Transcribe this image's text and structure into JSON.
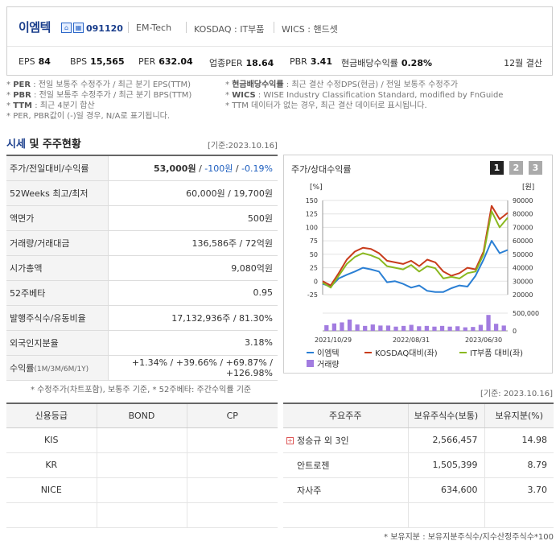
{
  "header": {
    "company_name": "이엠텍",
    "code": "091120",
    "english_name": "EM-Tech",
    "market": "KOSDAQ : IT부품",
    "wics": "WICS : 핸드셋",
    "badges": [
      "KOSDAQ",
      "WICS"
    ],
    "metrics": [
      {
        "label": "EPS",
        "value": "84"
      },
      {
        "label": "BPS",
        "value": "15,565"
      },
      {
        "label": "PER",
        "value": "632.04"
      },
      {
        "label": "업종PER",
        "value": "18.64"
      },
      {
        "label": "PBR",
        "value": "3.41"
      },
      {
        "label": "현금배당수익률",
        "value": "0.28%"
      }
    ],
    "settlement": "12월 결산"
  },
  "notes_left": [
    {
      "key": "PER",
      "text": ": 전일 보통주 수정주가 / 최근 분기 EPS(TTM)"
    },
    {
      "key": "PBR",
      "text": ": 전일 보통주 수정주가 / 최근 분기 BPS(TTM)"
    },
    {
      "key": "TTM",
      "text": ": 최근 4분기 합산"
    },
    {
      "key": "",
      "text": "PER, PBR값이 (-)일 경우, N/A로 표기됩니다."
    }
  ],
  "notes_right": [
    {
      "key": "현금배당수익률",
      "text": ": 최근 결산 수정DPS(현금) / 전일 보통주 수정주가"
    },
    {
      "key": "WICS",
      "text": ": WISE Industry Classification Standard, modified by FnGuide"
    },
    {
      "key": "",
      "text": "TTM 데이터가 없는 경우, 최근 결산 데이터로 표시됩니다."
    }
  ],
  "market_section": {
    "title_highlight": "시세",
    "title_rest": " 및 주주현황",
    "ref_date": "[기준:2023.10.16]",
    "rows": [
      {
        "label": "주가/전일대비/수익률",
        "price": "53,000원",
        "change": "-100원",
        "rate": "-0.19%"
      },
      {
        "label": "52Weeks 최고/최저",
        "value": "60,000원 / 19,700원"
      },
      {
        "label": "액면가",
        "value": "500원"
      },
      {
        "label": "거래량/거래대금",
        "value": "136,586주 / 72억원"
      },
      {
        "label": "시가총액",
        "value": "9,080억원"
      },
      {
        "label": "52주베타",
        "value": "0.95"
      },
      {
        "label": "발행주식수/유동비율",
        "value": "17,132,936주 / 81.30%"
      },
      {
        "label": "외국인지분율",
        "value": "3.18%"
      },
      {
        "label": "수익률",
        "label_sub": "(1M/3M/6M/1Y)",
        "returns": [
          "+1.34%",
          "+39.66%",
          "+69.87%",
          "+126.98%"
        ]
      }
    ],
    "footnote": "* 수정주가(차트포함), 보통주 기준, * 52주베타: 주간수익률 기준"
  },
  "chart_panel": {
    "title": "주가/상대수익률",
    "pages": [
      "1",
      "2",
      "3"
    ],
    "active_page": "1",
    "legend": [
      {
        "name": "이엠텍",
        "color": "#2a7fd4"
      },
      {
        "name": "KOSDAQ대비(좌)",
        "color": "#c83c1c"
      },
      {
        "name": "IT부품 대비(좌)",
        "color": "#8ab820"
      },
      {
        "name": "거래량",
        "color": "#a27ce0"
      }
    ]
  },
  "chart_data": {
    "type": "line",
    "x_ticks": [
      "2021/10/29",
      "2022/08/31",
      "2023/06/30"
    ],
    "left_unit": "[%]",
    "right_unit": "[원]",
    "left_ticks": [
      "150",
      "125",
      "100",
      "75",
      "50",
      "25",
      "0",
      "-25"
    ],
    "right_ticks": [
      "90000",
      "80000",
      "70000",
      "60000",
      "50000",
      "40000",
      "30000",
      "20000"
    ],
    "volume_ticks": [
      "500,000",
      "0"
    ],
    "ylim_left": [
      -25,
      150
    ],
    "ylim_right": [
      20000,
      90000
    ],
    "volume_max": 500000,
    "series": [
      {
        "name": "이엠텍",
        "color": "#2a7fd4",
        "values": [
          -5,
          -10,
          5,
          12,
          18,
          25,
          22,
          18,
          -2,
          0,
          -5,
          -12,
          -8,
          -18,
          -20,
          -20,
          -13,
          -8,
          -10,
          10,
          40,
          75,
          52,
          58
        ]
      },
      {
        "name": "KOSDAQ대비(좌)",
        "color": "#c83c1c",
        "values": [
          0,
          -8,
          15,
          40,
          55,
          62,
          60,
          52,
          38,
          35,
          32,
          38,
          28,
          40,
          35,
          18,
          10,
          15,
          25,
          22,
          55,
          140,
          115,
          127
        ]
      },
      {
        "name": "IT부품 대비(좌)",
        "color": "#8ab820",
        "values": [
          -3,
          -12,
          10,
          32,
          45,
          52,
          48,
          42,
          28,
          25,
          22,
          30,
          18,
          28,
          24,
          5,
          8,
          5,
          15,
          18,
          50,
          130,
          100,
          118
        ]
      }
    ],
    "volume": [
      160000,
      210000,
      240000,
      320000,
      180000,
      140000,
      180000,
      150000,
      150000,
      120000,
      140000,
      170000,
      130000,
      140000,
      120000,
      140000,
      120000,
      130000,
      100000,
      110000,
      170000,
      450000,
      200000,
      150000
    ]
  },
  "credit": {
    "headers": [
      "신용등급",
      "BOND",
      "CP"
    ],
    "rows": [
      [
        "KIS",
        "",
        ""
      ],
      [
        "KR",
        "",
        ""
      ],
      [
        "NICE",
        "",
        ""
      ]
    ]
  },
  "shareholders": {
    "ref_date": "[기준: 2023.10.16]",
    "headers": [
      "주요주주",
      "보유주식수(보통)",
      "보유지분(%)"
    ],
    "rows": [
      {
        "name": "정승규 외 3인",
        "shares": "2,566,457",
        "pct": "14.98",
        "expandable": true
      },
      {
        "name": "안트로젠",
        "shares": "1,505,399",
        "pct": "8.79",
        "expandable": false
      },
      {
        "name": "자사주",
        "shares": "634,600",
        "pct": "3.70",
        "expandable": false
      }
    ],
    "footnote": "* 보유지분 : 보유지분주식수/지수산정주식수*100"
  }
}
